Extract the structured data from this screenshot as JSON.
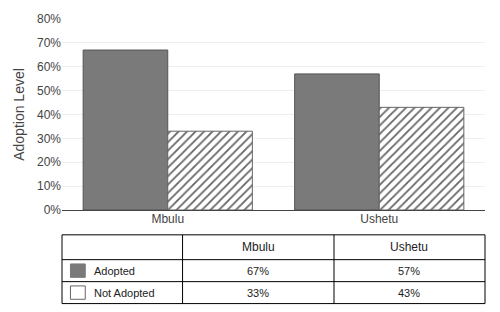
{
  "chart_data": {
    "type": "bar",
    "categories": [
      "Mbulu",
      "Ushetu"
    ],
    "series": [
      {
        "name": "Adopted",
        "color": "#7a7a7a",
        "values": [
          0.67,
          0.57
        ],
        "value_labels": [
          "67%",
          "57%"
        ]
      },
      {
        "name": "Not Adopted",
        "color": "#ffffff",
        "values": [
          0.33,
          0.43
        ],
        "value_labels": [
          "33%",
          "43%"
        ]
      }
    ],
    "ylabel": "Adoption Level",
    "ylim": [
      0,
      0.8
    ],
    "yticks": [
      {
        "value": 0.0,
        "label": "0%"
      },
      {
        "value": 0.1,
        "label": "10%"
      },
      {
        "value": 0.2,
        "label": "20%"
      },
      {
        "value": 0.3,
        "label": "30%"
      },
      {
        "value": 0.4,
        "label": "40%"
      },
      {
        "value": 0.5,
        "label": "50%"
      },
      {
        "value": 0.6,
        "label": "60%"
      },
      {
        "value": 0.7,
        "label": "70%"
      },
      {
        "value": 0.8,
        "label": "80%"
      }
    ],
    "grid": true
  }
}
